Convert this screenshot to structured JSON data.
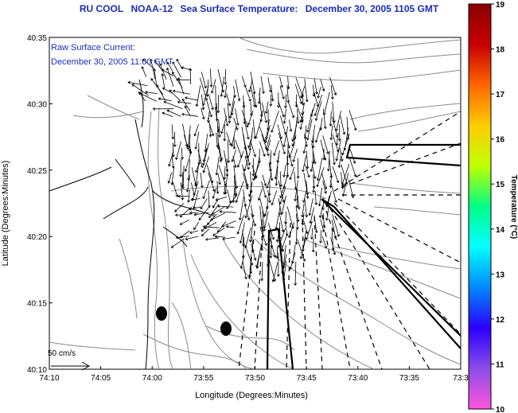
{
  "title": {
    "source": "RU COOL",
    "satellite": "NOAA-12",
    "product": "Sea Surface Temperature:",
    "date": "December 30, 2005 1105 GMT"
  },
  "overlay": {
    "line1": "Raw Surface Current:",
    "line2": "December 30, 2005 11:00 GMT"
  },
  "axes": {
    "xlabel": "Longitude (Degrees:Minutes)",
    "ylabel": "Latitude (Degrees:Minutes)",
    "x_ticks": [
      "74:10",
      "74:05",
      "74:00",
      "73:55",
      "73:50",
      "73:45",
      "73:40",
      "73:35",
      "73:3"
    ],
    "y_ticks": [
      "40:10",
      "40:15",
      "40:20",
      "40:25",
      "40:30",
      "40:35"
    ]
  },
  "scale_bar": {
    "label": "50 cm/s",
    "speed_cm_s": 50
  },
  "colorbar": {
    "title": "Temperature (°C)",
    "min": 10,
    "max": 19,
    "ticks": [
      "10",
      "11",
      "12",
      "13",
      "14",
      "15",
      "16",
      "17",
      "18",
      "19"
    ],
    "colors": [
      "#ff55dd",
      "#8a4de8",
      "#2a00ff",
      "#0088ff",
      "#00ffff",
      "#00ff88",
      "#bfff00",
      "#ffcc00",
      "#ff6600",
      "#c80000",
      "#8b0000"
    ]
  },
  "map": {
    "background": "#ffffff",
    "coast_color": "#000000",
    "contour_color": "#888888",
    "extent": {
      "lon_west": "74:10",
      "lon_east": "73:30",
      "lat_south": "40:10",
      "lat_north": "40:35"
    }
  }
}
